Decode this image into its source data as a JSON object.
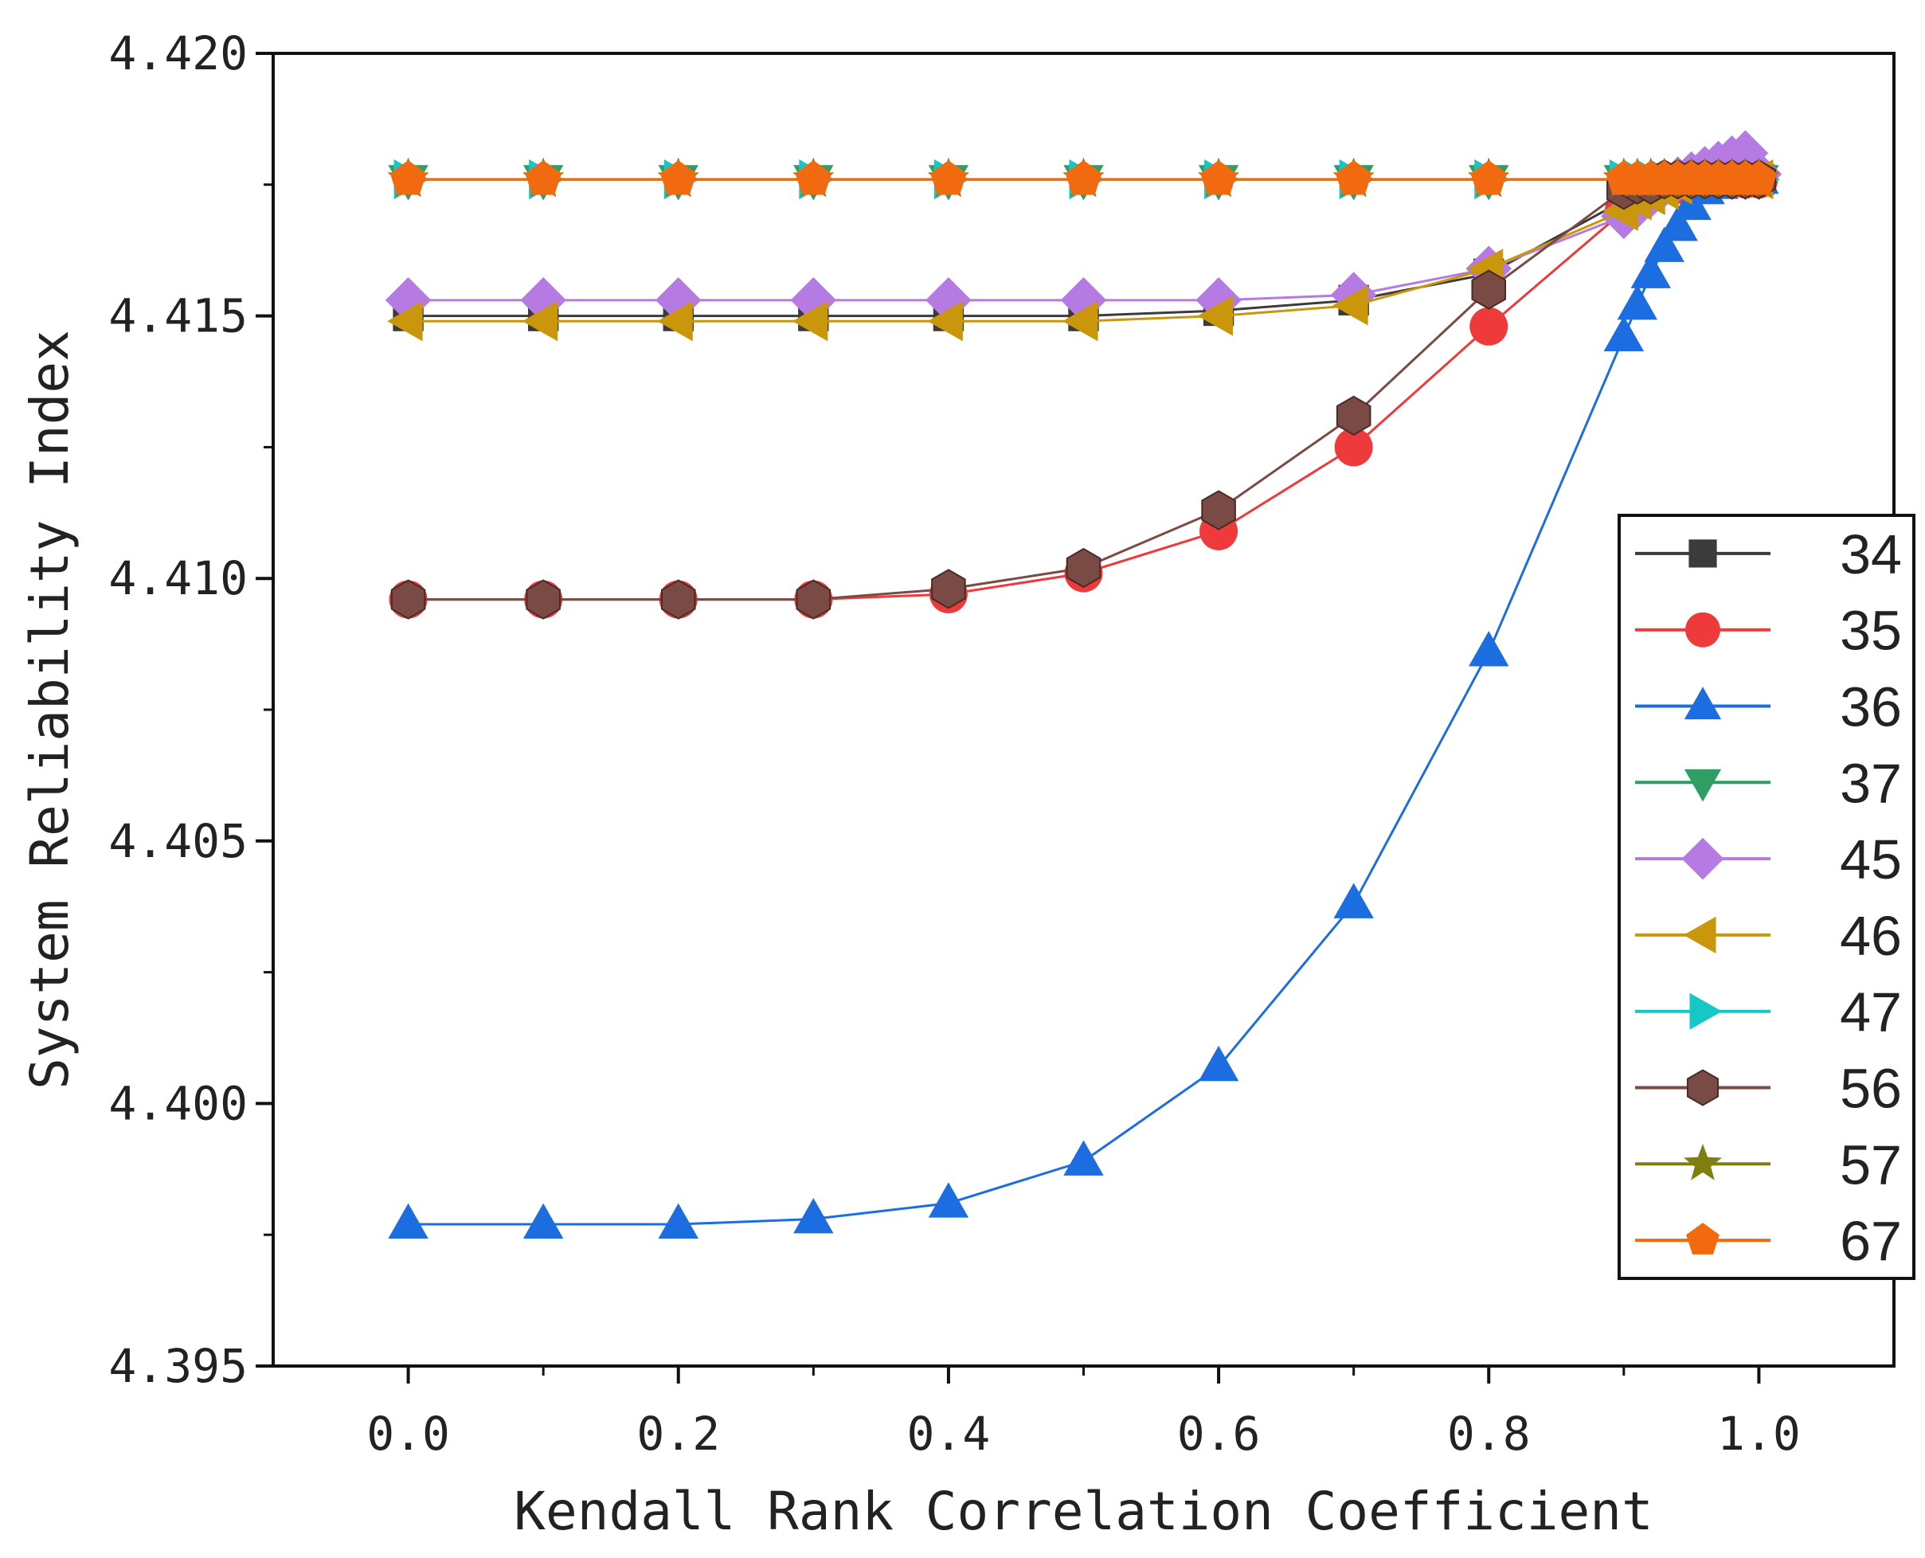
{
  "chart_data": {
    "type": "line",
    "title": "",
    "xlabel": "Kendall Rank Correlation Coefficient",
    "ylabel": "System Reliability Index",
    "xlim": [
      -0.1,
      1.1
    ],
    "ylim": [
      4.395,
      4.42
    ],
    "xticks": [
      0.0,
      0.2,
      0.4,
      0.6,
      0.8,
      1.0
    ],
    "xtick_labels": [
      "0.0",
      "0.2",
      "0.4",
      "0.6",
      "0.8",
      "1.0"
    ],
    "yticks": [
      4.395,
      4.4,
      4.405,
      4.41,
      4.415,
      4.42
    ],
    "ytick_labels": [
      "4.395",
      "4.400",
      "4.405",
      "4.410",
      "4.415",
      "4.420"
    ],
    "grid": false,
    "legend_position": "right",
    "x": [
      0.0,
      0.1,
      0.2,
      0.3,
      0.4,
      0.5,
      0.6,
      0.7,
      0.8,
      0.9,
      0.91,
      0.92,
      0.93,
      0.94,
      0.95,
      0.96,
      0.97,
      0.98,
      0.99,
      1.0
    ],
    "series": [
      {
        "name": "34",
        "color": "#3b3b3b",
        "marker": "square",
        "values": [
          4.415,
          4.415,
          4.415,
          4.415,
          4.415,
          4.415,
          4.4151,
          4.4153,
          4.4158,
          4.4172,
          4.4173,
          4.4174,
          4.4175,
          4.4175,
          4.4176,
          4.4176,
          4.4176,
          4.4176,
          4.4176,
          4.4176
        ]
      },
      {
        "name": "35",
        "color": "#ee3a3a",
        "marker": "circle",
        "values": [
          4.4096,
          4.4096,
          4.4096,
          4.4096,
          4.4097,
          4.4101,
          4.4109,
          4.4125,
          4.4148,
          4.417,
          4.4172,
          4.4174,
          4.4175,
          4.4175,
          4.4176,
          4.4176,
          4.4176,
          4.4176,
          4.4176,
          4.4176
        ]
      },
      {
        "name": "36",
        "color": "#1c6de0",
        "marker": "triangle-up",
        "values": [
          4.3977,
          4.3977,
          4.3977,
          4.3978,
          4.3981,
          4.3989,
          4.4007,
          4.4038,
          4.4086,
          4.4146,
          4.4152,
          4.4158,
          4.4163,
          4.4167,
          4.4171,
          4.4174,
          4.4175,
          4.4176,
          4.4176,
          4.4176
        ]
      },
      {
        "name": "37",
        "color": "#2e9e62",
        "marker": "triangle-down",
        "values": [
          4.4176,
          4.4176,
          4.4176,
          4.4176,
          4.4176,
          4.4176,
          4.4176,
          4.4176,
          4.4176,
          4.4176,
          4.4176,
          4.4176,
          4.4176,
          4.4176,
          4.4176,
          4.4176,
          4.4176,
          4.4176,
          4.4176,
          4.4176
        ]
      },
      {
        "name": "45",
        "color": "#b57be3",
        "marker": "diamond",
        "values": [
          4.4153,
          4.4153,
          4.4153,
          4.4153,
          4.4153,
          4.4153,
          4.4153,
          4.4154,
          4.4159,
          4.4169,
          4.4171,
          4.4173,
          4.4175,
          4.4176,
          4.4177,
          4.4178,
          4.4179,
          4.418,
          4.4181,
          4.4177
        ]
      },
      {
        "name": "46",
        "color": "#c9960c",
        "marker": "triangle-left",
        "values": [
          4.4149,
          4.4149,
          4.4149,
          4.4149,
          4.4149,
          4.4149,
          4.415,
          4.4152,
          4.4159,
          4.417,
          4.4172,
          4.4173,
          4.4174,
          4.4175,
          4.4176,
          4.4176,
          4.4176,
          4.4176,
          4.4176,
          4.4176
        ]
      },
      {
        "name": "47",
        "color": "#17c7c7",
        "marker": "triangle-right",
        "values": [
          4.4176,
          4.4176,
          4.4176,
          4.4176,
          4.4176,
          4.4176,
          4.4176,
          4.4176,
          4.4176,
          4.4176,
          4.4176,
          4.4176,
          4.4176,
          4.4176,
          4.4176,
          4.4176,
          4.4176,
          4.4176,
          4.4176,
          4.4176
        ]
      },
      {
        "name": "56",
        "color": "#7a4a44",
        "marker": "hexagon",
        "values": [
          4.4096,
          4.4096,
          4.4096,
          4.4096,
          4.4098,
          4.4102,
          4.4113,
          4.4131,
          4.4155,
          4.4174,
          4.4175,
          4.4175,
          4.4176,
          4.4176,
          4.4176,
          4.4176,
          4.4176,
          4.4176,
          4.4176,
          4.4176
        ]
      },
      {
        "name": "57",
        "color": "#7f7f10",
        "marker": "star",
        "values": [
          4.4176,
          4.4176,
          4.4176,
          4.4176,
          4.4176,
          4.4176,
          4.4176,
          4.4176,
          4.4176,
          4.4176,
          4.4176,
          4.4176,
          4.4176,
          4.4176,
          4.4176,
          4.4176,
          4.4176,
          4.4176,
          4.4176,
          4.4176
        ]
      },
      {
        "name": "67",
        "color": "#f26a10",
        "marker": "pentagon",
        "values": [
          4.4176,
          4.4176,
          4.4176,
          4.4176,
          4.4176,
          4.4176,
          4.4176,
          4.4176,
          4.4176,
          4.4176,
          4.4176,
          4.4176,
          4.4176,
          4.4176,
          4.4176,
          4.4176,
          4.4176,
          4.4176,
          4.4176,
          4.4176
        ]
      }
    ]
  }
}
